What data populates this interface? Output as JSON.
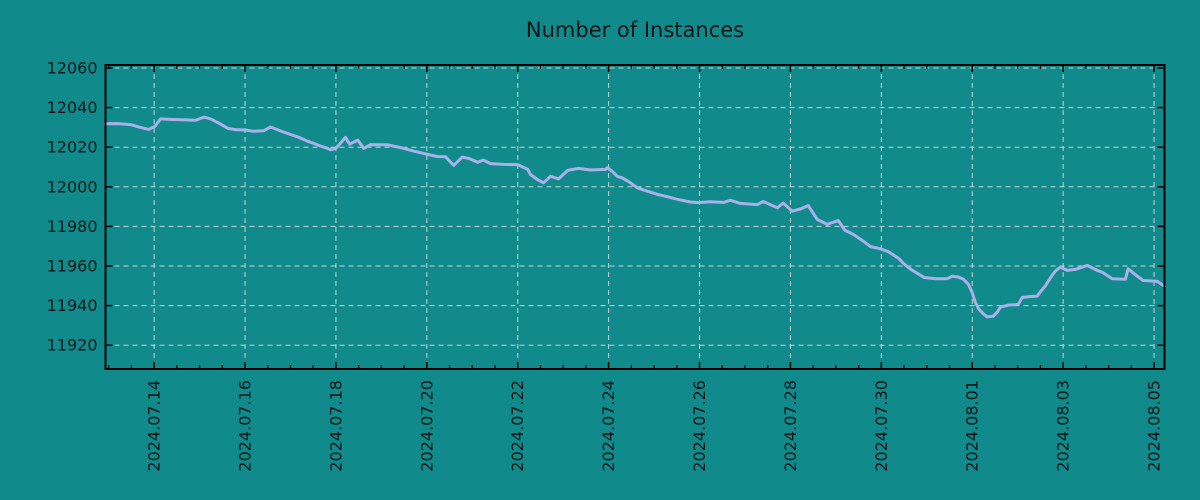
{
  "title": "Number of Instances",
  "colors": {
    "background": "#108a8b",
    "line": "#a9b1e8",
    "grid": "#c7d4d4",
    "axis": "#000000",
    "text": "#081717"
  },
  "chart_data": {
    "type": "line",
    "title": "Number of Instances",
    "xlabel": "",
    "ylabel": "",
    "x_unit": "days (0 = 2024.07.13)",
    "xlim": [
      -0.07,
      23.23
    ],
    "ylim": [
      11908,
      12061.5
    ],
    "grid": true,
    "grid_style": "dashed",
    "legend_position": "none",
    "x_minor_tick_step": 0.5,
    "x_ticks": [
      {
        "pos": 1,
        "label": "2024.07.14"
      },
      {
        "pos": 3,
        "label": "2024.07.16"
      },
      {
        "pos": 5,
        "label": "2024.07.18"
      },
      {
        "pos": 7,
        "label": "2024.07.20"
      },
      {
        "pos": 9,
        "label": "2024.07.22"
      },
      {
        "pos": 11,
        "label": "2024.07.24"
      },
      {
        "pos": 13,
        "label": "2024.07.26"
      },
      {
        "pos": 15,
        "label": "2024.07.28"
      },
      {
        "pos": 17,
        "label": "2024.07.30"
      },
      {
        "pos": 19,
        "label": "2024.08.01"
      },
      {
        "pos": 21,
        "label": "2024.08.03"
      },
      {
        "pos": 23,
        "label": "2024.08.05"
      }
    ],
    "y_ticks": [
      11920,
      11940,
      11960,
      11980,
      12000,
      12020,
      12040,
      12060
    ],
    "series": [
      {
        "name": "instances",
        "color": "#a9b1e8",
        "points": [
          [
            -0.07,
            12031.8
          ],
          [
            0.2,
            12031.9
          ],
          [
            0.48,
            12031.4
          ],
          [
            0.68,
            12030.1
          ],
          [
            0.88,
            12029.0
          ],
          [
            1.02,
            12030.5
          ],
          [
            1.14,
            12034.3
          ],
          [
            1.4,
            12034.0
          ],
          [
            1.7,
            12033.8
          ],
          [
            1.91,
            12033.6
          ],
          [
            2.1,
            12035.2
          ],
          [
            2.25,
            12034.2
          ],
          [
            2.46,
            12031.7
          ],
          [
            2.62,
            12029.5
          ],
          [
            2.81,
            12028.8
          ],
          [
            3.0,
            12028.7
          ],
          [
            3.19,
            12028.0
          ],
          [
            3.41,
            12028.3
          ],
          [
            3.56,
            12030.2
          ],
          [
            3.78,
            12028.2
          ],
          [
            4.0,
            12026.4
          ],
          [
            4.16,
            12025.2
          ],
          [
            4.38,
            12023.0
          ],
          [
            4.66,
            12020.6
          ],
          [
            4.82,
            12019.4
          ],
          [
            4.88,
            12018.7
          ],
          [
            4.99,
            12019.3
          ],
          [
            5.1,
            12022.0
          ],
          [
            5.21,
            12025.0
          ],
          [
            5.3,
            12021.5
          ],
          [
            5.48,
            12023.6
          ],
          [
            5.61,
            12019.4
          ],
          [
            5.76,
            12021.3
          ],
          [
            6.14,
            12021.2
          ],
          [
            6.42,
            12019.8
          ],
          [
            6.71,
            12018.0
          ],
          [
            7.01,
            12016.4
          ],
          [
            7.23,
            12015.3
          ],
          [
            7.41,
            12015.2
          ],
          [
            7.59,
            12010.8
          ],
          [
            7.78,
            12015.0
          ],
          [
            7.94,
            12014.2
          ],
          [
            8.12,
            12012.4
          ],
          [
            8.25,
            12013.5
          ],
          [
            8.4,
            12011.7
          ],
          [
            8.69,
            12011.3
          ],
          [
            9.0,
            12011.2
          ],
          [
            9.22,
            12008.8
          ],
          [
            9.28,
            12006.2
          ],
          [
            9.43,
            12003.7
          ],
          [
            9.57,
            12002.0
          ],
          [
            9.72,
            12005.3
          ],
          [
            9.9,
            12004.0
          ],
          [
            10.1,
            12008.3
          ],
          [
            10.34,
            12009.3
          ],
          [
            10.6,
            12008.5
          ],
          [
            10.93,
            12008.8
          ],
          [
            10.97,
            12009.6
          ],
          [
            11.08,
            12007.8
          ],
          [
            11.19,
            12005.3
          ],
          [
            11.3,
            12004.5
          ],
          [
            11.43,
            12002.8
          ],
          [
            11.63,
            11999.5
          ],
          [
            11.85,
            11997.8
          ],
          [
            12.07,
            11996.2
          ],
          [
            12.29,
            11995.0
          ],
          [
            12.51,
            11993.7
          ],
          [
            12.8,
            11992.3
          ],
          [
            12.98,
            11992.0
          ],
          [
            13.24,
            11992.4
          ],
          [
            13.53,
            11992.1
          ],
          [
            13.68,
            11993.2
          ],
          [
            13.9,
            11991.6
          ],
          [
            14.27,
            11991.0
          ],
          [
            14.4,
            11992.6
          ],
          [
            14.71,
            11989.4
          ],
          [
            14.84,
            11991.8
          ],
          [
            15.04,
            11987.7
          ],
          [
            15.22,
            11988.8
          ],
          [
            15.39,
            11990.5
          ],
          [
            15.59,
            11983.5
          ],
          [
            15.81,
            11981.0
          ],
          [
            16.05,
            11983.0
          ],
          [
            16.2,
            11978.0
          ],
          [
            16.38,
            11976.0
          ],
          [
            16.6,
            11972.6
          ],
          [
            16.76,
            11969.8
          ],
          [
            16.98,
            11968.7
          ],
          [
            17.15,
            11967.3
          ],
          [
            17.37,
            11964.0
          ],
          [
            17.5,
            11961.0
          ],
          [
            17.65,
            11958.3
          ],
          [
            17.81,
            11956.0
          ],
          [
            17.94,
            11954.2
          ],
          [
            18.2,
            11953.6
          ],
          [
            18.45,
            11953.6
          ],
          [
            18.56,
            11954.8
          ],
          [
            18.7,
            11954.4
          ],
          [
            18.8,
            11953.4
          ],
          [
            18.92,
            11950.6
          ],
          [
            19.0,
            11946.6
          ],
          [
            19.07,
            11941.6
          ],
          [
            19.14,
            11938.4
          ],
          [
            19.24,
            11935.9
          ],
          [
            19.33,
            11934.3
          ],
          [
            19.46,
            11934.6
          ],
          [
            19.55,
            11936.7
          ],
          [
            19.62,
            11939.2
          ],
          [
            19.8,
            11940.3
          ],
          [
            19.95,
            11940.4
          ],
          [
            20.02,
            11940.9
          ],
          [
            20.1,
            11944.1
          ],
          [
            20.28,
            11944.6
          ],
          [
            20.43,
            11944.8
          ],
          [
            20.5,
            11947.0
          ],
          [
            20.61,
            11950.0
          ],
          [
            20.72,
            11954.0
          ],
          [
            20.83,
            11957.5
          ],
          [
            20.94,
            11959.5
          ],
          [
            21.09,
            11957.8
          ],
          [
            21.27,
            11958.3
          ],
          [
            21.53,
            11960.3
          ],
          [
            21.75,
            11957.8
          ],
          [
            21.88,
            11956.6
          ],
          [
            22.08,
            11953.6
          ],
          [
            22.37,
            11953.3
          ],
          [
            22.43,
            11958.6
          ],
          [
            22.63,
            11954.9
          ],
          [
            22.76,
            11952.7
          ],
          [
            23.07,
            11952.3
          ],
          [
            23.23,
            11949.8
          ]
        ]
      }
    ]
  }
}
